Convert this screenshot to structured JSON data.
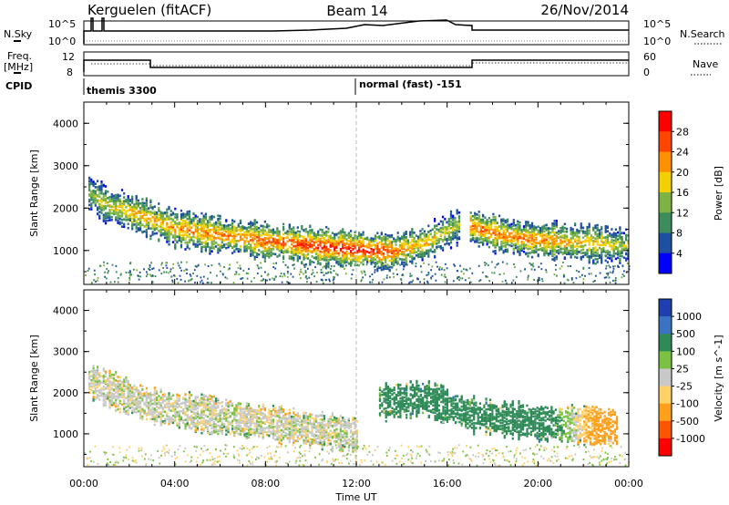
{
  "header": {
    "title_left": "Kerguelen (fitACF)",
    "title_center": "Beam 14",
    "date": "26/Nov/2014"
  },
  "top_panel": {
    "left_label": "N.Sky",
    "right_label": "N.Search",
    "yticks": [
      "10^5",
      "10^0"
    ],
    "right_yticks": [
      "10^5",
      "10^0"
    ]
  },
  "freq_panel": {
    "left_label_line1": "Freq.",
    "left_label_line2": "[MHz]",
    "right_label": "Nave",
    "yticks_left": [
      "12",
      "8"
    ],
    "yticks_right": [
      "60",
      "0"
    ]
  },
  "cpid": {
    "label": "CPID",
    "program_1": "themis 3300",
    "program_2": "normal (fast) -151"
  },
  "chart_data": [
    {
      "type": "heatmap",
      "name_label": "Power [dB]",
      "ylabel": "Slant Range [km]",
      "xlabel": "Time UT",
      "xlim": [
        0,
        24
      ],
      "ylim": [
        200,
        4500
      ],
      "xticks": [
        "00:00",
        "04:00",
        "08:00",
        "12:00",
        "16:00",
        "20:00",
        "00:00"
      ],
      "yticks": [
        1000,
        2000,
        3000,
        4000
      ],
      "colorbar": {
        "labels": [
          "28",
          "24",
          "20",
          "16",
          "12",
          "8",
          "4"
        ],
        "colors": [
          "#ff0000",
          "#ff4500",
          "#ff9000",
          "#f4d000",
          "#7cb342",
          "#3c8c5c",
          "#1f4fa0",
          "#0000ff"
        ]
      },
      "bands": [
        {
          "t": [
            0.2,
            1.0,
            2.5,
            4.0,
            6.0,
            8.0,
            10.0,
            12.0,
            13.5,
            15.0,
            16.5
          ],
          "r": [
            2400,
            2100,
            1850,
            1550,
            1400,
            1250,
            1150,
            1050,
            1000,
            1200,
            1650
          ],
          "power": [
            14,
            18,
            22,
            22,
            24,
            26,
            28,
            30,
            26,
            20,
            16
          ]
        },
        {
          "t": [
            17.0,
            18.0,
            19.5,
            21.0,
            22.5,
            24.0
          ],
          "r": [
            1600,
            1450,
            1300,
            1250,
            1200,
            1150
          ],
          "power": [
            26,
            24,
            24,
            22,
            20,
            16
          ]
        }
      ]
    },
    {
      "type": "heatmap",
      "name_label": "Velocity [m s^-1]",
      "ylabel": "Slant Range [km]",
      "xlabel": "Time UT",
      "xlim": [
        0,
        24
      ],
      "ylim": [
        200,
        4500
      ],
      "xticks": [
        "00:00",
        "04:00",
        "08:00",
        "12:00",
        "16:00",
        "20:00",
        "00:00"
      ],
      "yticks": [
        1000,
        2000,
        3000,
        4000
      ],
      "colorbar": {
        "labels": [
          "1000",
          "500",
          "100",
          "25",
          "-25",
          "-100",
          "-500",
          "-1000"
        ],
        "colors": [
          "#1f3fb0",
          "#3b73c4",
          "#2e8b57",
          "#7cc242",
          "#c8c8c8",
          "#ffd166",
          "#ff9f1c",
          "#ff5500",
          "#ff0000"
        ]
      },
      "bands": [
        {
          "t": [
            0.2,
            3.0,
            8.0,
            12.0
          ],
          "r": [
            2300,
            1700,
            1300,
            1000
          ],
          "velocity": [
            0,
            0,
            0,
            0
          ]
        },
        {
          "t": [
            13.0,
            15.0,
            17.0,
            20.0,
            23.5
          ],
          "r": [
            1800,
            1900,
            1500,
            1300,
            1200
          ],
          "velocity": [
            120,
            300,
            200,
            250,
            -300
          ]
        }
      ]
    }
  ]
}
